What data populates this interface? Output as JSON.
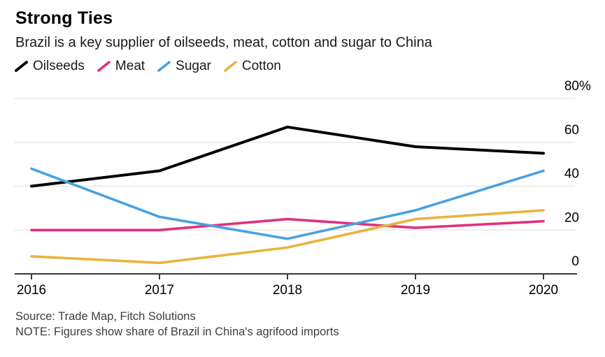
{
  "header": {
    "title": "Strong Ties",
    "subtitle": "Brazil is a key supplier of oilseeds, meat, cotton and sugar to China"
  },
  "legend": {
    "items": [
      {
        "label": "Oilseeds",
        "color": "#000000",
        "icon": "diagonal-line-swatch"
      },
      {
        "label": "Meat",
        "color": "#e0317b",
        "icon": "diagonal-line-swatch"
      },
      {
        "label": "Sugar",
        "color": "#4aa1e0",
        "icon": "diagonal-line-swatch"
      },
      {
        "label": "Cotton",
        "color": "#e9b43d",
        "icon": "diagonal-line-swatch"
      }
    ]
  },
  "chart_data": {
    "type": "line",
    "title": "Strong Ties",
    "subtitle": "Brazil is a key supplier of oilseeds, meat, cotton and sugar to China",
    "x": [
      "2016",
      "2017",
      "2018",
      "2019",
      "2020"
    ],
    "series": [
      {
        "name": "Oilseeds",
        "color": "#000000",
        "values": [
          40,
          47,
          67,
          58,
          55
        ]
      },
      {
        "name": "Meat",
        "color": "#e0317b",
        "values": [
          20,
          20,
          25,
          21,
          24
        ]
      },
      {
        "name": "Sugar",
        "color": "#4aa1e0",
        "values": [
          48,
          26,
          16,
          29,
          47
        ]
      },
      {
        "name": "Cotton",
        "color": "#e9b43d",
        "values": [
          8,
          5,
          12,
          25,
          29
        ]
      }
    ],
    "ylim": [
      0,
      80
    ],
    "yticks": [
      0,
      20,
      40,
      60,
      80
    ],
    "ytick_suffix_top": "%",
    "y_axis_position": "right",
    "x_axis_position": "bottom",
    "grid": "horizontal",
    "grid_color": "#e4e4e4",
    "axis_color": "#3a3a3a",
    "legend_position": "top"
  },
  "footer": {
    "source": "Source: Trade Map, Fitch Solutions",
    "note": "NOTE: Figures show share of Brazil in China's agrifood imports"
  }
}
